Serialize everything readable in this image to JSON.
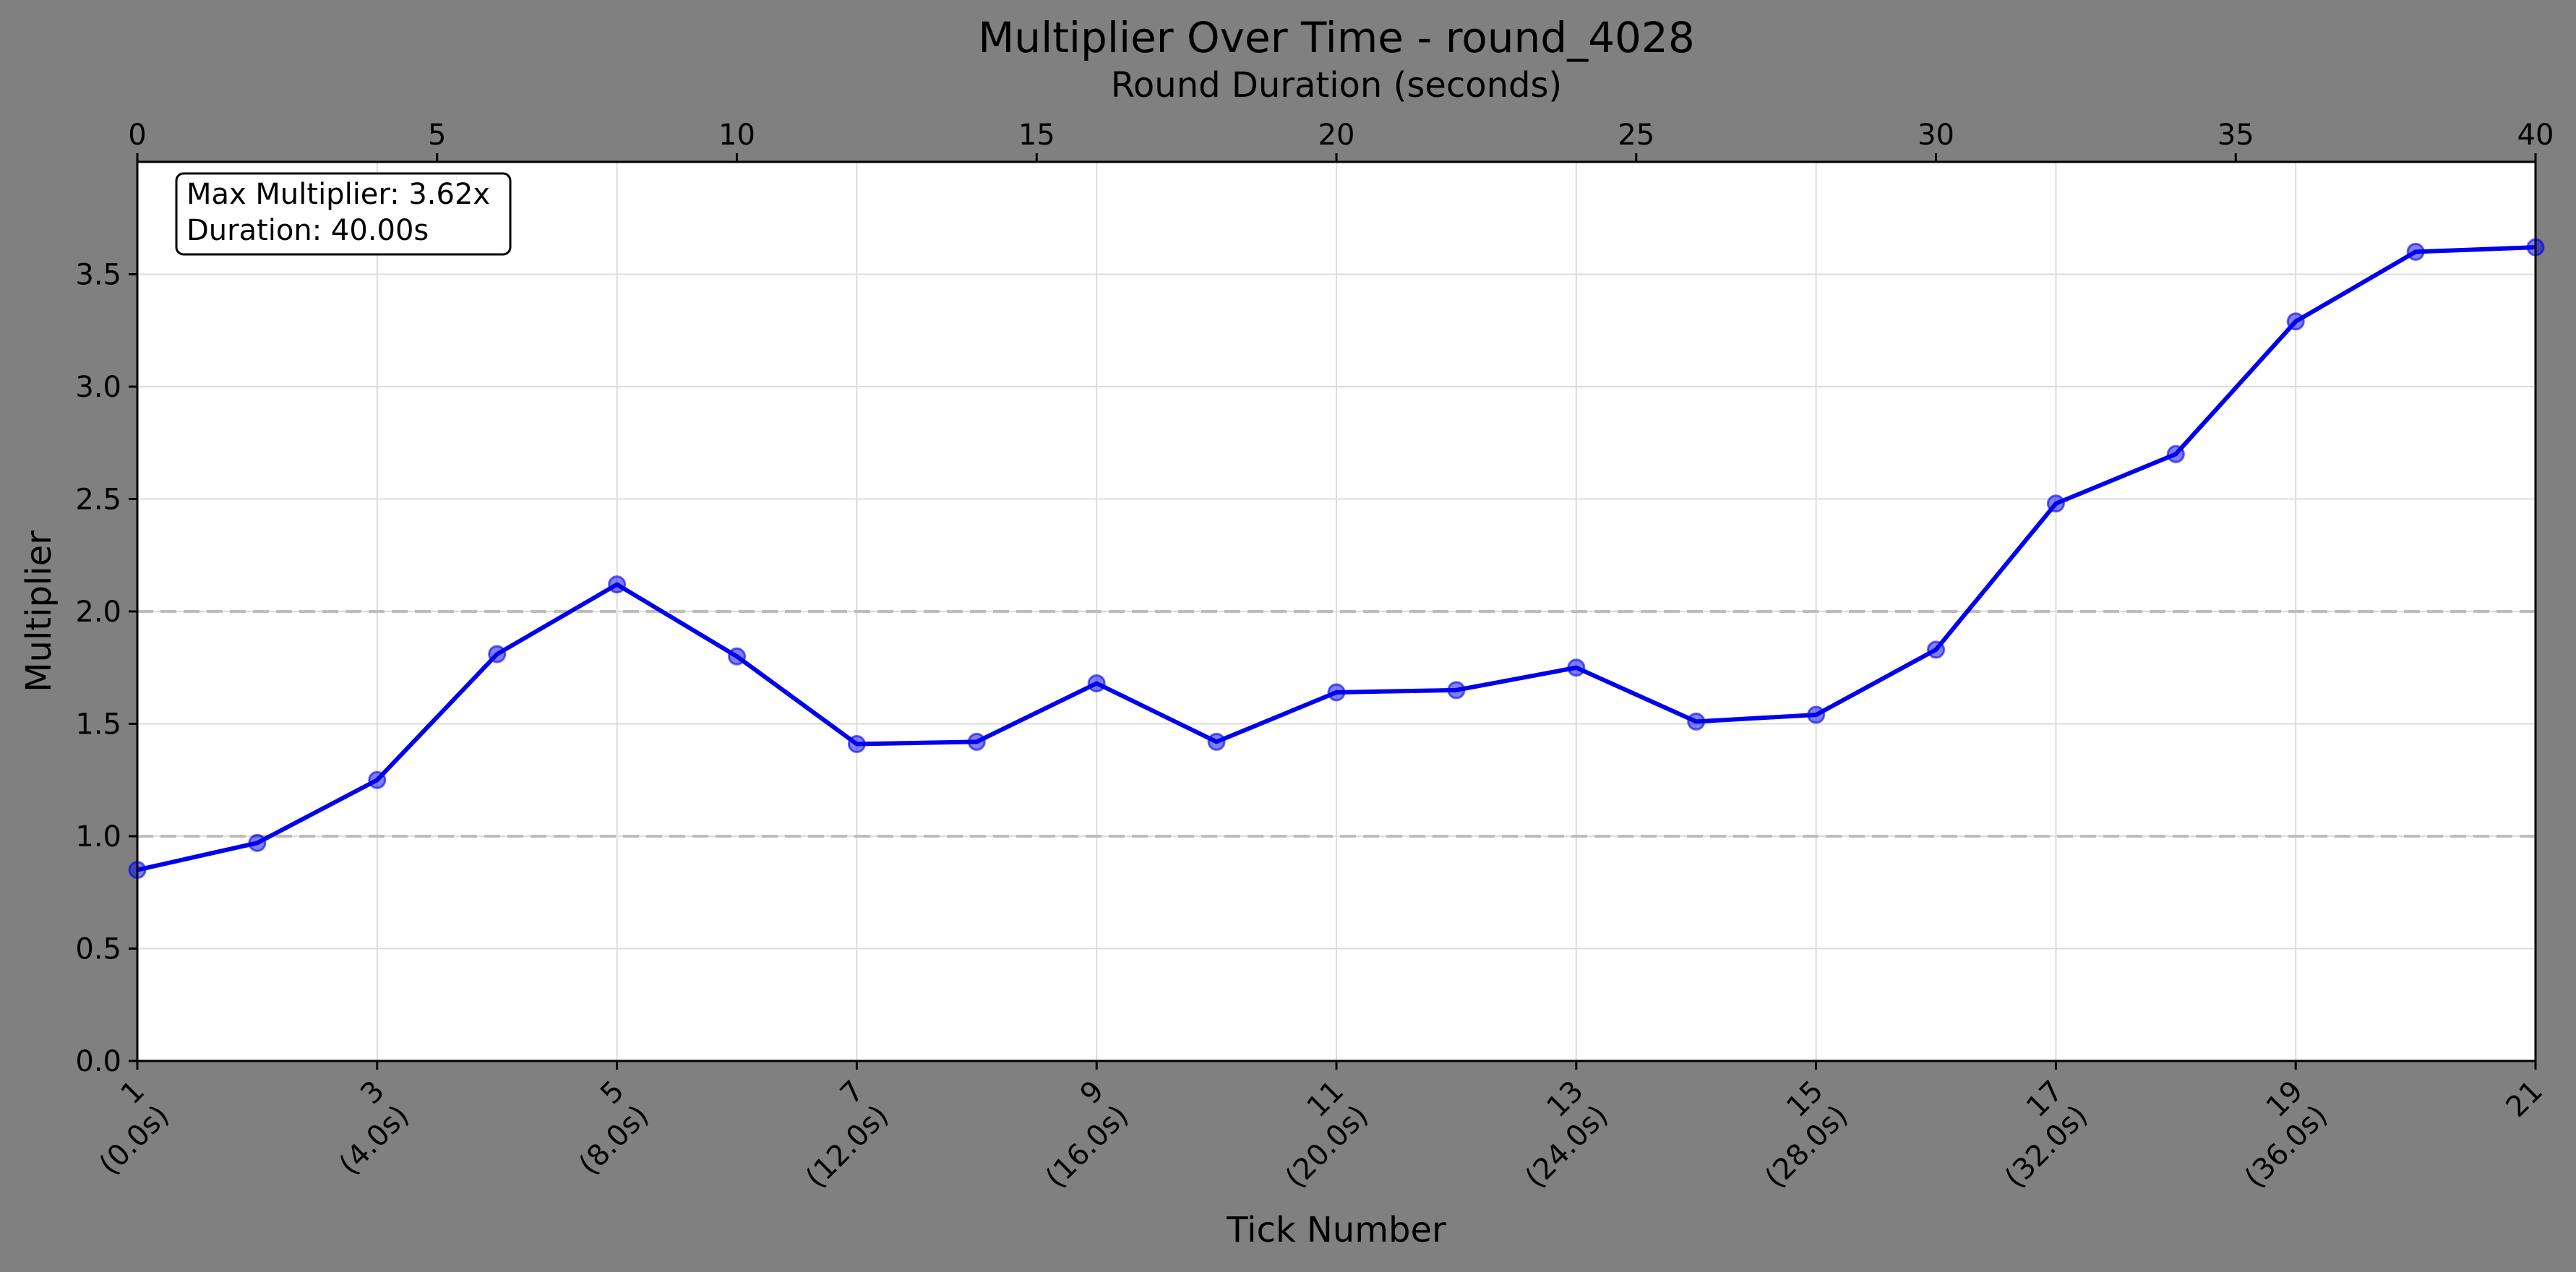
{
  "chart_data": {
    "type": "line",
    "title": "Multiplier Over Time - round_4028",
    "xlabel": "Tick Number",
    "ylabel": "Multiplier",
    "secondary_xlabel": "Round Duration (seconds)",
    "x": [
      1,
      2,
      3,
      4,
      5,
      6,
      7,
      8,
      9,
      10,
      11,
      12,
      13,
      14,
      15,
      16,
      17,
      18,
      19,
      20,
      21
    ],
    "series": [
      {
        "values": [
          0.85,
          0.97,
          1.25,
          1.81,
          2.12,
          1.8,
          1.41,
          1.42,
          1.68,
          1.42,
          1.64,
          1.65,
          1.75,
          1.51,
          1.54,
          1.83,
          2.48,
          2.7,
          3.29,
          3.6,
          3.62
        ],
        "color": "#0000ee"
      }
    ],
    "xlim": [
      1,
      21
    ],
    "ylim": [
      0,
      4.0
    ],
    "yticks": [
      0.0,
      0.5,
      1.0,
      1.5,
      2.0,
      2.5,
      3.0,
      3.5
    ],
    "ytick_labels": [
      "0.0",
      "0.5",
      "1.0",
      "1.5",
      "2.0",
      "2.5",
      "3.0",
      "3.5"
    ],
    "xticks": [
      1,
      3,
      5,
      7,
      9,
      11,
      13,
      15,
      17,
      19,
      21
    ],
    "xtick_labels": [
      [
        "1",
        "(0.0s)"
      ],
      [
        "3",
        "(4.0s)"
      ],
      [
        "5",
        "(8.0s)"
      ],
      [
        "7",
        "(12.0s)"
      ],
      [
        "9",
        "(16.0s)"
      ],
      [
        "11",
        "(20.0s)"
      ],
      [
        "13",
        "(24.0s)"
      ],
      [
        "15",
        "(28.0s)"
      ],
      [
        "17",
        "(32.0s)"
      ],
      [
        "19",
        "(36.0s)"
      ],
      [
        "21",
        ""
      ]
    ],
    "secondary_xlim": [
      0,
      40
    ],
    "secondary_xticks": [
      0,
      5,
      10,
      15,
      20,
      25,
      30,
      35,
      40
    ],
    "secondary_xtick_labels": [
      "0",
      "5",
      "10",
      "15",
      "20",
      "25",
      "30",
      "35",
      "40"
    ],
    "reference_lines": [
      1.0,
      2.0
    ],
    "grid": true,
    "annotation": {
      "line1": "Max Multiplier: 3.62x",
      "line2": "Duration: 40.00s"
    }
  }
}
